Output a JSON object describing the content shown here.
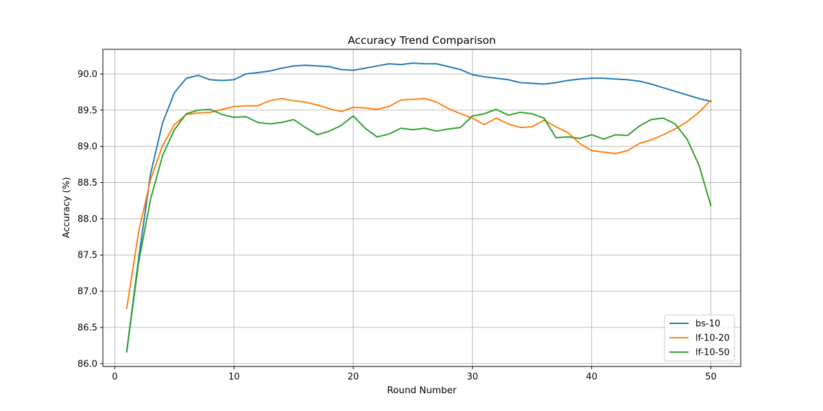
{
  "chart_data": {
    "type": "line",
    "title": "Accuracy Trend Comparison",
    "xlabel": "Round Number",
    "ylabel": "Accuracy (%)",
    "xlim": [
      -1,
      52.5
    ],
    "ylim": [
      85.96,
      90.34
    ],
    "xticks": [
      0,
      10,
      20,
      30,
      40,
      50
    ],
    "yticks": [
      86.0,
      86.5,
      87.0,
      87.5,
      88.0,
      88.5,
      89.0,
      89.5,
      90.0
    ],
    "grid": true,
    "legend_position": "lower-right",
    "x": [
      1,
      2,
      3,
      4,
      5,
      6,
      7,
      8,
      9,
      10,
      11,
      12,
      13,
      14,
      15,
      16,
      17,
      18,
      19,
      20,
      21,
      22,
      23,
      24,
      25,
      26,
      27,
      28,
      29,
      30,
      31,
      32,
      33,
      34,
      35,
      36,
      37,
      38,
      39,
      40,
      41,
      42,
      43,
      44,
      45,
      46,
      47,
      48,
      49,
      50
    ],
    "series": [
      {
        "name": "bs-10",
        "color": "#1f77b4",
        "values": [
          86.17,
          87.45,
          88.62,
          89.32,
          89.74,
          89.94,
          89.98,
          89.92,
          89.91,
          89.92,
          90.0,
          90.02,
          90.04,
          90.08,
          90.11,
          90.12,
          90.11,
          90.1,
          90.06,
          90.05,
          90.08,
          90.11,
          90.14,
          90.13,
          90.15,
          90.14,
          90.14,
          90.1,
          90.06,
          89.99,
          89.96,
          89.94,
          89.92,
          89.88,
          89.87,
          89.86,
          89.88,
          89.91,
          89.93,
          89.94,
          89.94,
          89.93,
          89.92,
          89.9,
          89.86,
          89.81,
          89.76,
          89.71,
          89.66,
          89.62
        ]
      },
      {
        "name": "lf-10-20",
        "color": "#ff7f0e",
        "values": [
          86.76,
          87.82,
          88.54,
          89.01,
          89.3,
          89.44,
          89.46,
          89.47,
          89.51,
          89.55,
          89.56,
          89.56,
          89.63,
          89.66,
          89.63,
          89.61,
          89.57,
          89.52,
          89.48,
          89.54,
          89.53,
          89.51,
          89.55,
          89.64,
          89.65,
          89.66,
          89.61,
          89.52,
          89.45,
          89.39,
          89.3,
          89.39,
          89.31,
          89.26,
          89.27,
          89.36,
          89.27,
          89.19,
          89.04,
          88.94,
          88.92,
          88.9,
          88.94,
          89.04,
          89.09,
          89.16,
          89.24,
          89.34,
          89.47,
          89.64
        ]
      },
      {
        "name": "lf-10-50",
        "color": "#2ca02c",
        "values": [
          86.16,
          87.4,
          88.27,
          88.87,
          89.23,
          89.45,
          89.5,
          89.51,
          89.44,
          89.4,
          89.41,
          89.33,
          89.31,
          89.33,
          89.37,
          89.26,
          89.16,
          89.21,
          89.29,
          89.42,
          89.25,
          89.13,
          89.17,
          89.25,
          89.23,
          89.25,
          89.21,
          89.24,
          89.26,
          89.42,
          89.45,
          89.51,
          89.43,
          89.47,
          89.45,
          89.39,
          89.12,
          89.13,
          89.11,
          89.16,
          89.1,
          89.16,
          89.15,
          89.28,
          89.37,
          89.39,
          89.31,
          89.1,
          88.74,
          88.18
        ]
      }
    ]
  }
}
